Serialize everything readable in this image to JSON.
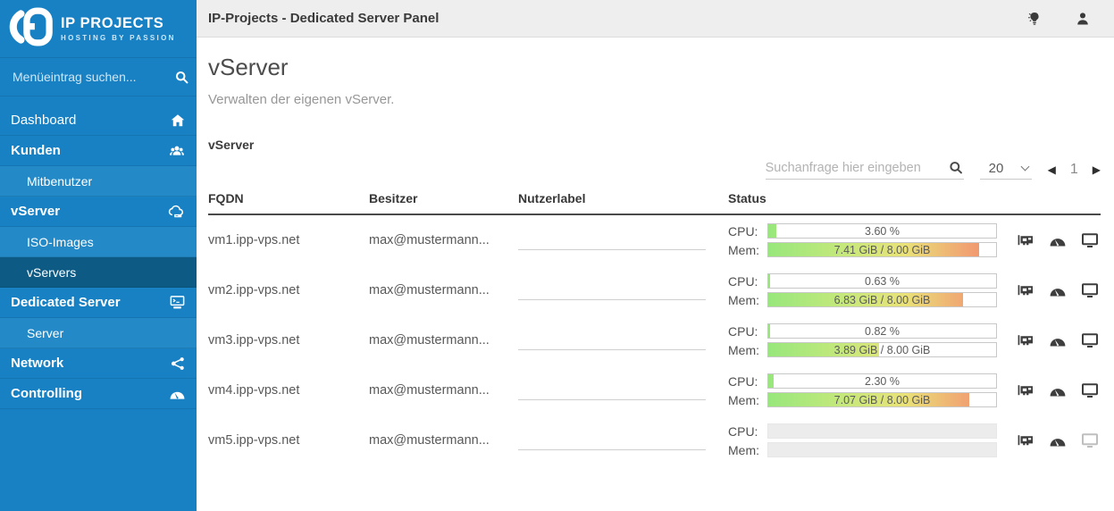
{
  "brand": {
    "name": "IP PROJECTS",
    "tagline": "HOSTING BY PASSION"
  },
  "sidebar": {
    "search_placeholder": "Menüeintrag suchen...",
    "menu": [
      {
        "label": "Dashboard",
        "icon": "home-icon",
        "level": 1,
        "active": false
      },
      {
        "label": "Kunden",
        "icon": "users-icon",
        "level": 1,
        "active": false
      },
      {
        "label": "Mitbenutzer",
        "icon": "",
        "level": 2,
        "active": false
      },
      {
        "label": "vServer",
        "icon": "cloud-server-icon",
        "level": 1,
        "active": false
      },
      {
        "label": "ISO-Images",
        "icon": "",
        "level": 2,
        "active": false
      },
      {
        "label": "vServers",
        "icon": "",
        "level": 2,
        "active": true
      },
      {
        "label": "Dedicated Server",
        "icon": "terminal-icon",
        "level": 1,
        "active": false
      },
      {
        "label": "Server",
        "icon": "",
        "level": 2,
        "active": false
      },
      {
        "label": "Network",
        "icon": "share-icon",
        "level": 1,
        "active": false
      },
      {
        "label": "Controlling",
        "icon": "gauge-icon",
        "level": 1,
        "active": false
      }
    ]
  },
  "topbar": {
    "title": "IP-Projects - Dedicated Server Panel",
    "icons": [
      "lightbulb-icon",
      "user-icon"
    ]
  },
  "page": {
    "title": "vServer",
    "subtitle": "Verwalten der eigenen vServer.",
    "section_label": "vServer"
  },
  "toolbar": {
    "search_placeholder": "Suchanfrage hier eingeben",
    "page_size": "20",
    "page": "1",
    "prev_icon": "◀",
    "next_icon": "▶"
  },
  "table": {
    "columns": [
      "FQDN",
      "Besitzer",
      "Nutzerlabel",
      "Status"
    ],
    "labels": {
      "cpu": "CPU:",
      "mem": "Mem:"
    },
    "rows": [
      {
        "fqdn": "vm1.ipp-vps.net",
        "owner": "max@mustermann...",
        "label": "",
        "offline": false,
        "cpu_pct": 3.6,
        "cpu_text": "3.60 %",
        "mem_pct": 92.6,
        "mem_text": "7.41 GiB / 8.00 GiB"
      },
      {
        "fqdn": "vm2.ipp-vps.net",
        "owner": "max@mustermann...",
        "label": "",
        "offline": false,
        "cpu_pct": 0.63,
        "cpu_text": "0.63 %",
        "mem_pct": 85.4,
        "mem_text": "6.83 GiB / 8.00 GiB"
      },
      {
        "fqdn": "vm3.ipp-vps.net",
        "owner": "max@mustermann...",
        "label": "",
        "offline": false,
        "cpu_pct": 0.82,
        "cpu_text": "0.82 %",
        "mem_pct": 48.6,
        "mem_text": "3.89 GiB / 8.00 GiB"
      },
      {
        "fqdn": "vm4.ipp-vps.net",
        "owner": "max@mustermann...",
        "label": "",
        "offline": false,
        "cpu_pct": 2.3,
        "cpu_text": "2.30 %",
        "mem_pct": 88.4,
        "mem_text": "7.07 GiB / 8.00 GiB"
      },
      {
        "fqdn": "vm5.ipp-vps.net",
        "owner": "max@mustermann...",
        "label": "",
        "offline": true,
        "cpu_pct": 0,
        "cpu_text": "",
        "mem_pct": 0,
        "mem_text": ""
      }
    ]
  },
  "colors": {
    "sidebar": "#1781c4",
    "sidebar_sub": "#2389c7",
    "sidebar_active": "#0d5b85",
    "topbar": "#eeeeee",
    "bar_green": "#98e77c",
    "bar_red": "#f28a6d"
  }
}
